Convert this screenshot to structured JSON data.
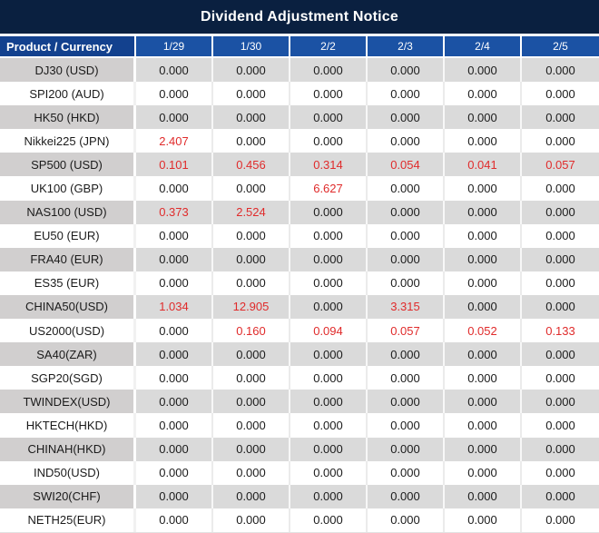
{
  "title": "Dividend Adjustment Notice",
  "header": {
    "product_currency": "Product / Currency",
    "dates": [
      "1/29",
      "1/30",
      "2/2",
      "2/3",
      "2/4",
      "2/5"
    ]
  },
  "rows": [
    {
      "product": "DJ30 (USD)",
      "values": [
        "0.000",
        "0.000",
        "0.000",
        "0.000",
        "0.000",
        "0.000"
      ]
    },
    {
      "product": "SPI200 (AUD)",
      "values": [
        "0.000",
        "0.000",
        "0.000",
        "0.000",
        "0.000",
        "0.000"
      ]
    },
    {
      "product": "HK50 (HKD)",
      "values": [
        "0.000",
        "0.000",
        "0.000",
        "0.000",
        "0.000",
        "0.000"
      ]
    },
    {
      "product": "Nikkei225 (JPN)",
      "values": [
        "2.407",
        "0.000",
        "0.000",
        "0.000",
        "0.000",
        "0.000"
      ]
    },
    {
      "product": "SP500 (USD)",
      "values": [
        "0.101",
        "0.456",
        "0.314",
        "0.054",
        "0.041",
        "0.057"
      ]
    },
    {
      "product": "UK100 (GBP)",
      "values": [
        "0.000",
        "0.000",
        "6.627",
        "0.000",
        "0.000",
        "0.000"
      ]
    },
    {
      "product": "NAS100 (USD)",
      "values": [
        "0.373",
        "2.524",
        "0.000",
        "0.000",
        "0.000",
        "0.000"
      ]
    },
    {
      "product": "EU50 (EUR)",
      "values": [
        "0.000",
        "0.000",
        "0.000",
        "0.000",
        "0.000",
        "0.000"
      ]
    },
    {
      "product": "FRA40 (EUR)",
      "values": [
        "0.000",
        "0.000",
        "0.000",
        "0.000",
        "0.000",
        "0.000"
      ]
    },
    {
      "product": "ES35 (EUR)",
      "values": [
        "0.000",
        "0.000",
        "0.000",
        "0.000",
        "0.000",
        "0.000"
      ]
    },
    {
      "product": "CHINA50(USD)",
      "values": [
        "1.034",
        "12.905",
        "0.000",
        "3.315",
        "0.000",
        "0.000"
      ]
    },
    {
      "product": "US2000(USD)",
      "values": [
        "0.000",
        "0.160",
        "0.094",
        "0.057",
        "0.052",
        "0.133"
      ]
    },
    {
      "product": "SA40(ZAR)",
      "values": [
        "0.000",
        "0.000",
        "0.000",
        "0.000",
        "0.000",
        "0.000"
      ]
    },
    {
      "product": "SGP20(SGD)",
      "values": [
        "0.000",
        "0.000",
        "0.000",
        "0.000",
        "0.000",
        "0.000"
      ]
    },
    {
      "product": "TWINDEX(USD)",
      "values": [
        "0.000",
        "0.000",
        "0.000",
        "0.000",
        "0.000",
        "0.000"
      ]
    },
    {
      "product": "HKTECH(HKD)",
      "values": [
        "0.000",
        "0.000",
        "0.000",
        "0.000",
        "0.000",
        "0.000"
      ]
    },
    {
      "product": "CHINAH(HKD)",
      "values": [
        "0.000",
        "0.000",
        "0.000",
        "0.000",
        "0.000",
        "0.000"
      ]
    },
    {
      "product": "IND50(USD)",
      "values": [
        "0.000",
        "0.000",
        "0.000",
        "0.000",
        "0.000",
        "0.000"
      ]
    },
    {
      "product": "SWI20(CHF)",
      "values": [
        "0.000",
        "0.000",
        "0.000",
        "0.000",
        "0.000",
        "0.000"
      ]
    },
    {
      "product": "NETH25(EUR)",
      "values": [
        "0.000",
        "0.000",
        "0.000",
        "0.000",
        "0.000",
        "0.000"
      ]
    }
  ],
  "colors": {
    "title_bg": "#0A2040",
    "header_first_bg": "#13418E",
    "header_date_bg": "#1B52A4",
    "row_gray_first": "#D1CFCF",
    "row_gray_data": "#DADADA",
    "row_white": "#FFFFFF",
    "value_default": "#1B1B1B",
    "value_highlight_red": "#E02B2B",
    "zero_value": "0.000"
  }
}
